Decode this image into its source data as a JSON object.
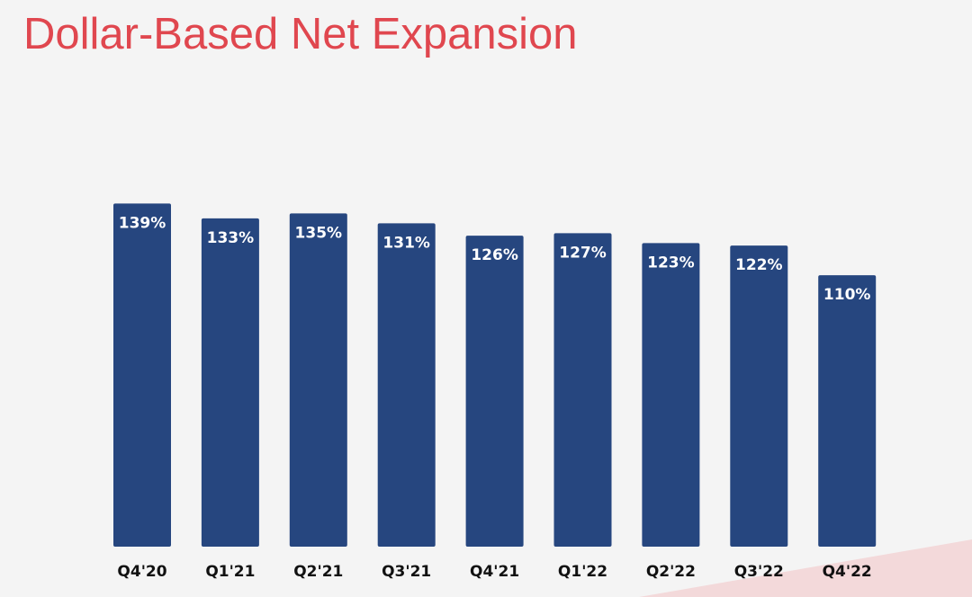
{
  "slide": {
    "title": "Dollar-Based Net Expansion"
  },
  "colors": {
    "title": "#e0474f",
    "bar": "#26467f",
    "bar_label": "#ffffff",
    "tick_label": "#111111",
    "background": "#f4f4f4",
    "accent_shape": "#f3d9da"
  },
  "chart_data": {
    "type": "bar",
    "title": "",
    "xlabel": "",
    "ylabel": "",
    "categories": [
      "Q4'20",
      "Q1'21",
      "Q2'21",
      "Q3'21",
      "Q4'21",
      "Q1'22",
      "Q2'22",
      "Q3'22",
      "Q4'22"
    ],
    "values": [
      139,
      133,
      135,
      131,
      126,
      127,
      123,
      122,
      110
    ],
    "data_labels": [
      "139%",
      "133%",
      "135%",
      "131%",
      "126%",
      "127%",
      "123%",
      "122%",
      "110%"
    ],
    "ylim": [
      0,
      150
    ],
    "grid": false,
    "legend": "none"
  }
}
